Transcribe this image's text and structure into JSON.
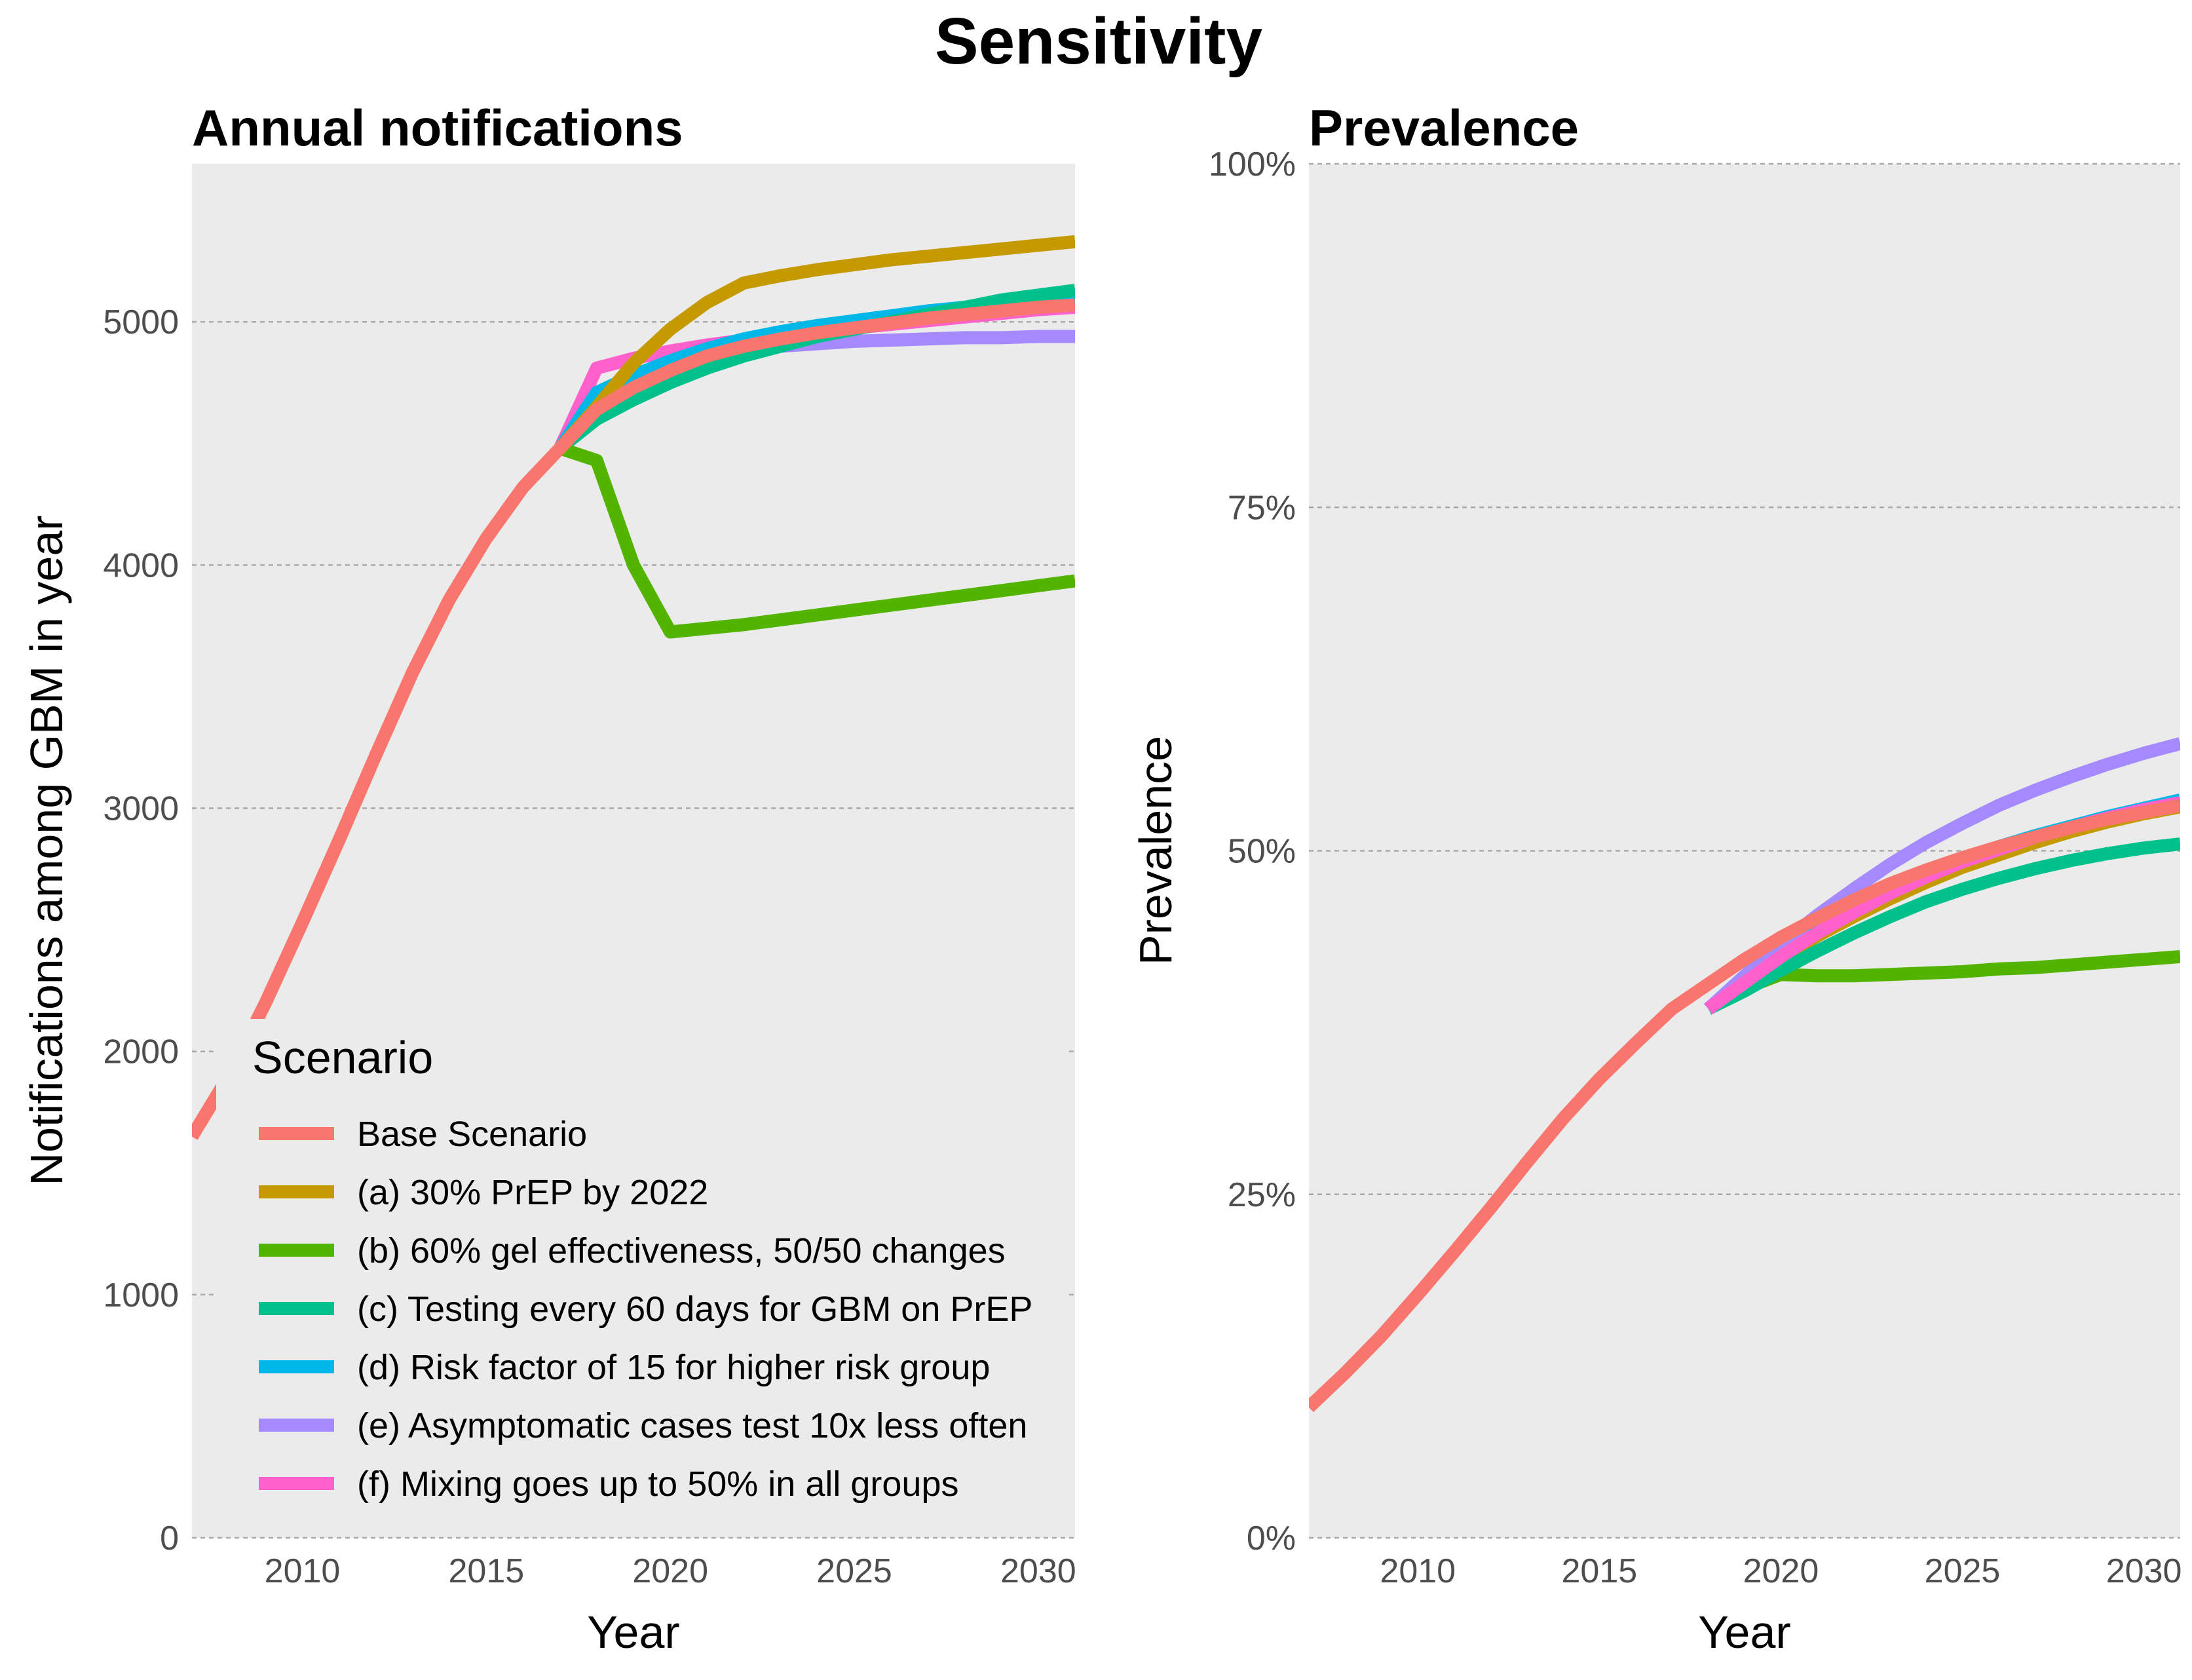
{
  "title": "Sensitivity",
  "legend": {
    "title": "Scenario",
    "placement": "inside-bottom-left of left panel"
  },
  "chart_data": [
    {
      "type": "line",
      "title": "Annual notifications",
      "xlabel": "Year",
      "ylabel": "Notifications among GBM in year",
      "xlim": [
        2007,
        2031
      ],
      "ylim": [
        0,
        5650
      ],
      "x_ticks": [
        2010,
        2015,
        2020,
        2025,
        2030
      ],
      "y_ticks": [
        0,
        1000,
        2000,
        3000,
        4000,
        5000
      ],
      "y_tick_labels": [
        "0",
        "1000",
        "2000",
        "3000",
        "4000",
        "5000"
      ],
      "grid": "horizontal dashed",
      "series": [
        {
          "name": "(f) Mixing goes up to 50% in all groups",
          "color": "#FF61CC",
          "x": [
            2017,
            2018,
            2019,
            2020,
            2021,
            2022,
            2023,
            2024,
            2025,
            2026,
            2027,
            2028,
            2029,
            2030,
            2031
          ],
          "y": [
            4480,
            4810,
            4850,
            4880,
            4905,
            4925,
            4940,
            4960,
            4975,
            4990,
            5005,
            5020,
            5035,
            5050,
            5060
          ]
        },
        {
          "name": "(e) Asymptomatic cases test 10x less often",
          "color": "#A58AFF",
          "x": [
            2017,
            2018,
            2019,
            2020,
            2021,
            2022,
            2023,
            2024,
            2025,
            2026,
            2027,
            2028,
            2029,
            2030,
            2031
          ],
          "y": [
            4480,
            4650,
            4740,
            4810,
            4850,
            4880,
            4900,
            4910,
            4920,
            4925,
            4930,
            4935,
            4935,
            4940,
            4940
          ]
        },
        {
          "name": "(d) Risk factor of 15 for higher risk group",
          "color": "#00B8E7",
          "x": [
            2017,
            2018,
            2019,
            2020,
            2021,
            2022,
            2023,
            2024,
            2025,
            2026,
            2027,
            2028,
            2029,
            2030,
            2031
          ],
          "y": [
            4480,
            4710,
            4780,
            4840,
            4890,
            4930,
            4960,
            4985,
            5005,
            5025,
            5045,
            5060,
            5075,
            5090,
            5100
          ]
        },
        {
          "name": "(c) Testing every 60 days for GBM on PrEP",
          "color": "#00C08B",
          "x": [
            2017,
            2018,
            2019,
            2020,
            2021,
            2022,
            2023,
            2024,
            2025,
            2026,
            2027,
            2028,
            2029,
            2030,
            2031
          ],
          "y": [
            4480,
            4600,
            4680,
            4750,
            4810,
            4860,
            4900,
            4940,
            4970,
            5000,
            5030,
            5060,
            5090,
            5110,
            5130
          ]
        },
        {
          "name": "(b) 60% gel effectiveness, 50/50 changes",
          "color": "#53B400",
          "x": [
            2017,
            2018,
            2019,
            2020,
            2021,
            2022,
            2023,
            2024,
            2025,
            2026,
            2027,
            2028,
            2029,
            2030,
            2031
          ],
          "y": [
            4480,
            4430,
            4000,
            3725,
            3740,
            3755,
            3775,
            3795,
            3815,
            3835,
            3855,
            3875,
            3895,
            3915,
            3935
          ]
        },
        {
          "name": "(a) 30% PrEP by 2022",
          "color": "#C49A00",
          "x": [
            2017,
            2018,
            2019,
            2020,
            2021,
            2022,
            2023,
            2024,
            2025,
            2026,
            2027,
            2028,
            2029,
            2030,
            2031
          ],
          "y": [
            4480,
            4650,
            4830,
            4970,
            5080,
            5160,
            5190,
            5215,
            5235,
            5255,
            5270,
            5285,
            5300,
            5315,
            5330
          ]
        },
        {
          "name": "Base Scenario",
          "color": "#F8766D",
          "x": [
            2007,
            2008,
            2009,
            2010,
            2011,
            2012,
            2013,
            2014,
            2015,
            2016,
            2017,
            2018,
            2019,
            2020,
            2021,
            2022,
            2023,
            2024,
            2025,
            2026,
            2027,
            2028,
            2029,
            2030,
            2031
          ],
          "y": [
            1650,
            1900,
            2200,
            2530,
            2870,
            3220,
            3560,
            3860,
            4110,
            4320,
            4480,
            4640,
            4730,
            4800,
            4860,
            4900,
            4930,
            4955,
            4975,
            4995,
            5015,
            5030,
            5045,
            5060,
            5070
          ]
        }
      ]
    },
    {
      "type": "line",
      "title": "Prevalence",
      "xlabel": "Year",
      "ylabel": "Prevalence",
      "xlim": [
        2007,
        2031
      ],
      "ylim": [
        0,
        1
      ],
      "x_ticks": [
        2010,
        2015,
        2020,
        2025,
        2030
      ],
      "y_ticks": [
        0,
        0.25,
        0.5,
        0.75,
        1
      ],
      "y_tick_labels": [
        "0%",
        "25%",
        "50%",
        "75%",
        "100%"
      ],
      "grid": "horizontal dashed",
      "series": [
        {
          "name": "(a) 30% PrEP by 2022",
          "color": "#C49A00",
          "x": [
            2018,
            2019,
            2020,
            2021,
            2022,
            2023,
            2024,
            2025,
            2026,
            2027,
            2028,
            2029,
            2030,
            2031
          ],
          "y": [
            0.385,
            0.404,
            0.422,
            0.438,
            0.452,
            0.465,
            0.477,
            0.488,
            0.497,
            0.506,
            0.514,
            0.521,
            0.527,
            0.532
          ]
        },
        {
          "name": "(b) 60% gel effectiveness, 50/50 changes",
          "color": "#53B400",
          "x": [
            2018,
            2019,
            2020,
            2021,
            2022,
            2023,
            2024,
            2025,
            2026,
            2027,
            2028,
            2029,
            2030,
            2031
          ],
          "y": [
            0.385,
            0.4,
            0.41,
            0.409,
            0.409,
            0.41,
            0.411,
            0.412,
            0.414,
            0.415,
            0.417,
            0.419,
            0.421,
            0.423
          ]
        },
        {
          "name": "(c) Testing every 60 days for GBM on PrEP",
          "color": "#00C08B",
          "x": [
            2018,
            2019,
            2020,
            2021,
            2022,
            2023,
            2024,
            2025,
            2026,
            2027,
            2028,
            2029,
            2030,
            2031
          ],
          "y": [
            0.385,
            0.398,
            0.413,
            0.427,
            0.44,
            0.452,
            0.463,
            0.472,
            0.48,
            0.487,
            0.493,
            0.498,
            0.502,
            0.505
          ]
        },
        {
          "name": "(d) Risk factor of 15 for higher risk group",
          "color": "#00B8E7",
          "x": [
            2018,
            2019,
            2020,
            2021,
            2022,
            2023,
            2024,
            2025,
            2026,
            2027,
            2028,
            2029,
            2030,
            2031
          ],
          "y": [
            0.385,
            0.405,
            0.424,
            0.441,
            0.456,
            0.47,
            0.482,
            0.493,
            0.503,
            0.511,
            0.518,
            0.525,
            0.531,
            0.537
          ]
        },
        {
          "name": "(e) Asymptomatic cases test 10x less often",
          "color": "#A58AFF",
          "x": [
            2018,
            2019,
            2020,
            2021,
            2022,
            2023,
            2024,
            2025,
            2026,
            2027,
            2028,
            2029,
            2030,
            2031
          ],
          "y": [
            0.385,
            0.409,
            0.432,
            0.453,
            0.472,
            0.49,
            0.506,
            0.52,
            0.533,
            0.544,
            0.554,
            0.563,
            0.571,
            0.578
          ]
        },
        {
          "name": "(f) Mixing goes up to 50% in all groups",
          "color": "#FF61CC",
          "x": [
            2018,
            2019,
            2020,
            2021,
            2022,
            2023,
            2024,
            2025,
            2026,
            2027,
            2028,
            2029,
            2030,
            2031
          ],
          "y": [
            0.385,
            0.404,
            0.423,
            0.44,
            0.455,
            0.469,
            0.481,
            0.492,
            0.501,
            0.51,
            0.517,
            0.524,
            0.53,
            0.535
          ]
        },
        {
          "name": "Base Scenario",
          "color": "#F8766D",
          "x": [
            2007,
            2008,
            2009,
            2010,
            2011,
            2012,
            2013,
            2014,
            2015,
            2016,
            2017,
            2018,
            2019,
            2020,
            2021,
            2022,
            2023,
            2024,
            2025,
            2026,
            2027,
            2028,
            2029,
            2030,
            2031
          ],
          "y": [
            0.095,
            0.12,
            0.147,
            0.177,
            0.208,
            0.24,
            0.273,
            0.305,
            0.334,
            0.36,
            0.385,
            0.403,
            0.421,
            0.437,
            0.451,
            0.464,
            0.476,
            0.486,
            0.495,
            0.503,
            0.51,
            0.517,
            0.523,
            0.528,
            0.533
          ]
        }
      ]
    }
  ]
}
